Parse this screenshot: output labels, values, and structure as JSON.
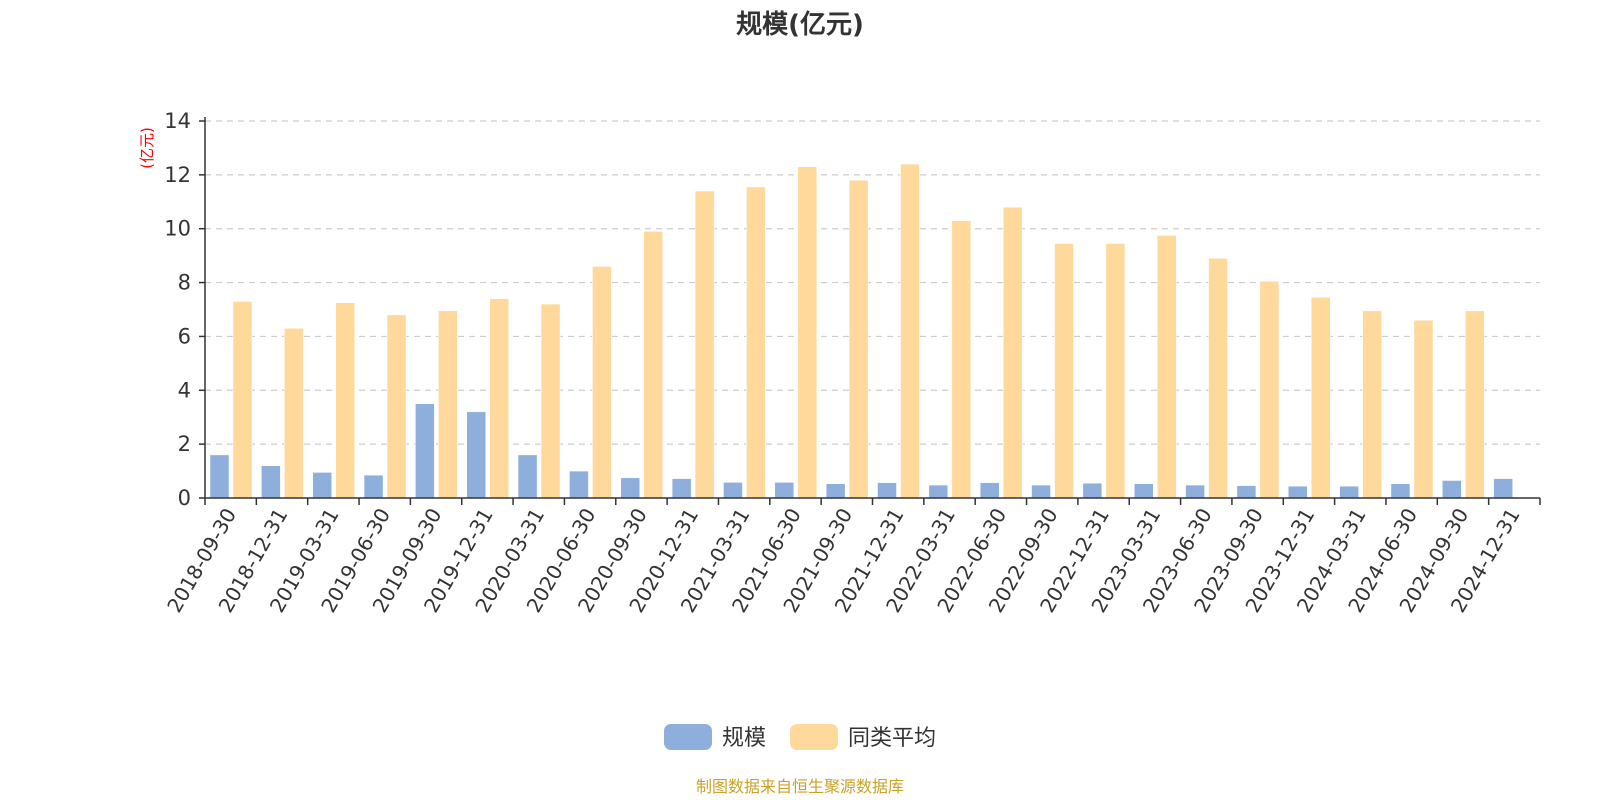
{
  "chart_data": {
    "type": "bar",
    "title": "规模(亿元)",
    "ylabel": "(亿元)",
    "ylim": [
      0,
      14
    ],
    "yticks": [
      0,
      2,
      4,
      6,
      8,
      10,
      12,
      14
    ],
    "grid": true,
    "legend_position": "bottom",
    "categories": [
      "2018-09-30",
      "2018-12-31",
      "2019-03-31",
      "2019-06-30",
      "2019-09-30",
      "2019-12-31",
      "2020-03-31",
      "2020-06-30",
      "2020-09-30",
      "2020-12-31",
      "2021-03-31",
      "2021-06-30",
      "2021-09-30",
      "2021-12-31",
      "2022-03-31",
      "2022-06-30",
      "2022-09-30",
      "2022-12-31",
      "2023-03-31",
      "2023-06-30",
      "2023-09-30",
      "2023-12-31",
      "2024-03-31",
      "2024-06-30",
      "2024-09-30",
      "2024-12-31"
    ],
    "series": [
      {
        "name": "规模",
        "color": "#8eaedc",
        "values": [
          1.6,
          1.2,
          0.95,
          0.85,
          3.5,
          3.2,
          1.6,
          1.0,
          0.75,
          0.72,
          0.58,
          0.58,
          0.53,
          0.57,
          0.48,
          0.57,
          0.48,
          0.55,
          0.53,
          0.48,
          0.46,
          0.44,
          0.44,
          0.53,
          0.65,
          0.72
        ]
      },
      {
        "name": "同类平均",
        "color": "#fed99b",
        "values": [
          7.3,
          6.3,
          7.25,
          6.8,
          6.95,
          7.4,
          7.2,
          8.6,
          9.9,
          11.4,
          11.55,
          12.3,
          11.8,
          12.4,
          10.3,
          10.8,
          9.45,
          9.45,
          9.75,
          8.9,
          8.05,
          7.45,
          6.95,
          6.6,
          6.95,
          null
        ]
      }
    ],
    "unit_color": "#ff0000",
    "axis_color": "#333333",
    "grid_color": "#cccccc"
  },
  "footer": {
    "source_text": "制图数据来自恒生聚源数据库",
    "source_color": "#c9a227"
  }
}
